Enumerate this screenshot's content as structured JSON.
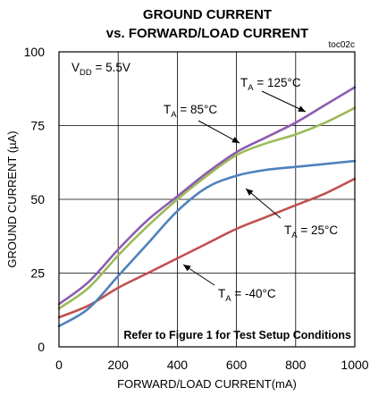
{
  "chart_data": {
    "type": "line",
    "title_line1": "GROUND CURRENT",
    "title_line2": "vs. FORWARD/LOAD CURRENT",
    "code": "toc02c",
    "xlabel": "FORWARD/LOAD CURRENT(mA)",
    "ylabel": "GROUND CURRENT (µA)",
    "xlim": [
      0,
      1000
    ],
    "ylim": [
      0,
      100
    ],
    "xticks": [
      "0",
      "200",
      "400",
      "600",
      "800",
      "1000"
    ],
    "yticks": [
      "0",
      "25",
      "50",
      "75",
      "100"
    ],
    "grid": true,
    "condition": {
      "main": "V",
      "sub": "DD",
      "rest": " = 5.5V"
    },
    "note": "Refer to Figure 1 for Test Setup Conditions",
    "series": [
      {
        "name": "125°C",
        "label_main": "T",
        "label_sub": "A",
        "label_rest": " = 125°C",
        "color": "#8e5cb0",
        "x": [
          0,
          100,
          200,
          300,
          400,
          500,
          600,
          700,
          800,
          900,
          1000
        ],
        "y": [
          14.5,
          22,
          33,
          43,
          51,
          59,
          66,
          71,
          76,
          82,
          88
        ]
      },
      {
        "name": "85°C",
        "label_main": "T",
        "label_sub": "A",
        "label_rest": " = 85°C",
        "color": "#9bbb59",
        "x": [
          0,
          100,
          200,
          300,
          400,
          500,
          600,
          700,
          800,
          900,
          1000
        ],
        "y": [
          13,
          20,
          31,
          41,
          50,
          58,
          65,
          69,
          72,
          76,
          81
        ]
      },
      {
        "name": "25°C",
        "label_main": "T",
        "label_sub": "A",
        "label_rest": " = 25°C",
        "color": "#4f81bd",
        "x": [
          0,
          100,
          200,
          300,
          400,
          500,
          600,
          700,
          800,
          900,
          1000
        ],
        "y": [
          7,
          13,
          24,
          35,
          46,
          54,
          58,
          60,
          61,
          62,
          63
        ]
      },
      {
        "name": "-40°C",
        "label_main": "T",
        "label_sub": "A",
        "label_rest": " = -40°C",
        "color": "#c0504d",
        "x": [
          0,
          100,
          200,
          300,
          400,
          500,
          600,
          700,
          800,
          900,
          1000
        ],
        "y": [
          10,
          14,
          20,
          25,
          30,
          35,
          40,
          44,
          48,
          52,
          57
        ]
      }
    ]
  }
}
